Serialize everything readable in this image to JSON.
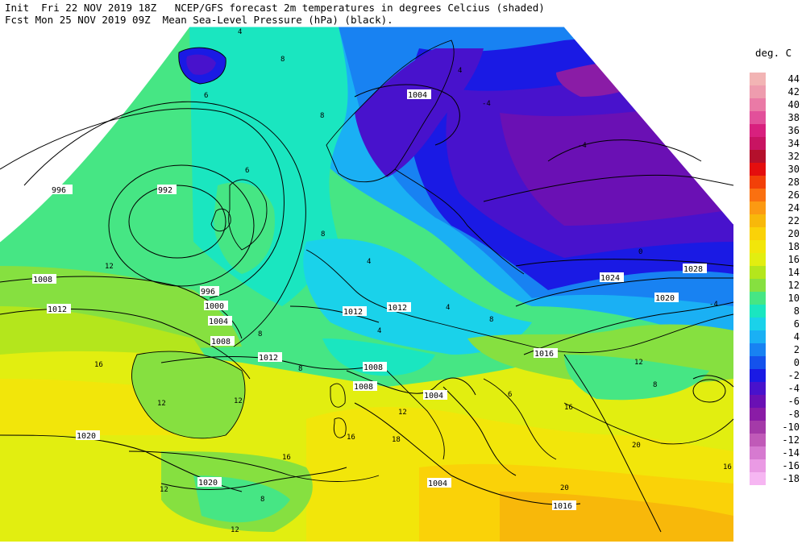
{
  "header": {
    "line1": "Init  Fri 22 NOV 2019 18Z   NCEP/GFS forecast 2m temperatures in degrees Celcius (shaded)",
    "line2": "Fcst Mon 25 NOV 2019 09Z  Mean Sea-Level Pressure (hPa) (black)."
  },
  "legend": {
    "title": "deg. C",
    "entries": [
      {
        "label": "44",
        "color": "#f2b4b4"
      },
      {
        "label": "42",
        "color": "#ee9cae"
      },
      {
        "label": "40",
        "color": "#ea7aa6"
      },
      {
        "label": "38",
        "color": "#e2509a"
      },
      {
        "label": "36",
        "color": "#d8207e"
      },
      {
        "label": "34",
        "color": "#c81462"
      },
      {
        "label": "32",
        "color": "#b4102c"
      },
      {
        "label": "30",
        "color": "#e40e0e"
      },
      {
        "label": "28",
        "color": "#f24008"
      },
      {
        "label": "26",
        "color": "#fa7010"
      },
      {
        "label": "24",
        "color": "#fc9a12"
      },
      {
        "label": "22",
        "color": "#f8b80a"
      },
      {
        "label": "20",
        "color": "#fad208"
      },
      {
        "label": "18",
        "color": "#f2e60a"
      },
      {
        "label": "16",
        "color": "#e2ee10"
      },
      {
        "label": "14",
        "color": "#b4e61c"
      },
      {
        "label": "12",
        "color": "#86e040"
      },
      {
        "label": "10",
        "color": "#46e684"
      },
      {
        "label": "8",
        "color": "#1ae6c0"
      },
      {
        "label": "6",
        "color": "#1ad2ea"
      },
      {
        "label": "4",
        "color": "#1ab0f4"
      },
      {
        "label": "2",
        "color": "#1882f2"
      },
      {
        "label": "0",
        "color": "#1452ec"
      },
      {
        "label": "-2",
        "color": "#1a1ae4"
      },
      {
        "label": "-4",
        "color": "#4812cc"
      },
      {
        "label": "-6",
        "color": "#6a10b4"
      },
      {
        "label": "-8",
        "color": "#8a1ca6"
      },
      {
        "label": "-10",
        "color": "#a43aa8"
      },
      {
        "label": "-12",
        "color": "#c05ab8"
      },
      {
        "label": "-14",
        "color": "#d67ad0"
      },
      {
        "label": "-16",
        "color": "#ea9ae4"
      },
      {
        "label": "-18",
        "color": "#f6b6f2"
      }
    ]
  },
  "isobar_labels": [
    "996",
    "992",
    "1008",
    "1012",
    "996",
    "1000",
    "1004",
    "1008",
    "1012",
    "1012",
    "1008",
    "1004",
    "1004",
    "1020",
    "1020",
    "1004",
    "1016",
    "1016",
    "1020",
    "1024",
    "1028",
    "1008",
    "1012"
  ],
  "temp_labels": [
    "4",
    "8",
    "6",
    "8",
    "6",
    "12",
    "4",
    "8",
    "4",
    "12",
    "12",
    "8",
    "4",
    "8",
    "16",
    "-4",
    "-4",
    "0",
    "12",
    "18",
    "16",
    "20",
    "16",
    "12",
    "8",
    "6",
    "8",
    "12",
    "16",
    "20",
    "16",
    "12",
    "-4",
    "8",
    "4"
  ]
}
